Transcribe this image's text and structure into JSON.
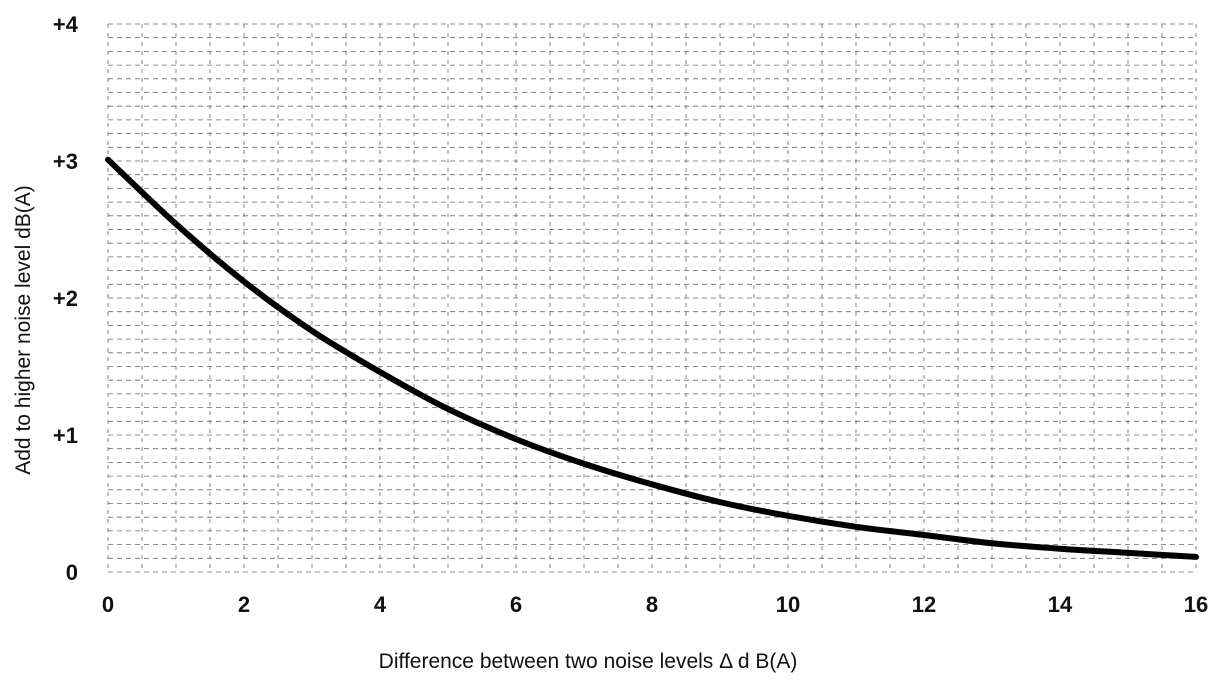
{
  "chart_data": {
    "type": "line",
    "title": "",
    "xlabel": "Difference between two noise levels Δ d B(A)",
    "ylabel": "Add to higher noise level dB(A)",
    "xlim": [
      0,
      16
    ],
    "ylim": [
      0,
      4
    ],
    "x_ticks": [
      0,
      2,
      4,
      6,
      8,
      10,
      12,
      14,
      16
    ],
    "x_tick_labels": [
      "0",
      "2",
      "4",
      "6",
      "8",
      "10",
      "12",
      "14",
      "16"
    ],
    "y_ticks": [
      0,
      1,
      2,
      3,
      4
    ],
    "y_tick_labels": [
      "0",
      "+1",
      "+2",
      "+3",
      "+4"
    ],
    "grid": true,
    "series": [
      {
        "color": "#000000",
        "x": [
          0,
          1,
          2,
          3,
          4,
          5,
          6,
          7,
          8,
          9,
          10,
          11,
          12,
          13,
          14,
          15,
          16
        ],
        "y": [
          3.01,
          2.54,
          2.12,
          1.76,
          1.46,
          1.19,
          0.97,
          0.79,
          0.64,
          0.51,
          0.41,
          0.33,
          0.27,
          0.21,
          0.17,
          0.14,
          0.11
        ]
      }
    ]
  }
}
